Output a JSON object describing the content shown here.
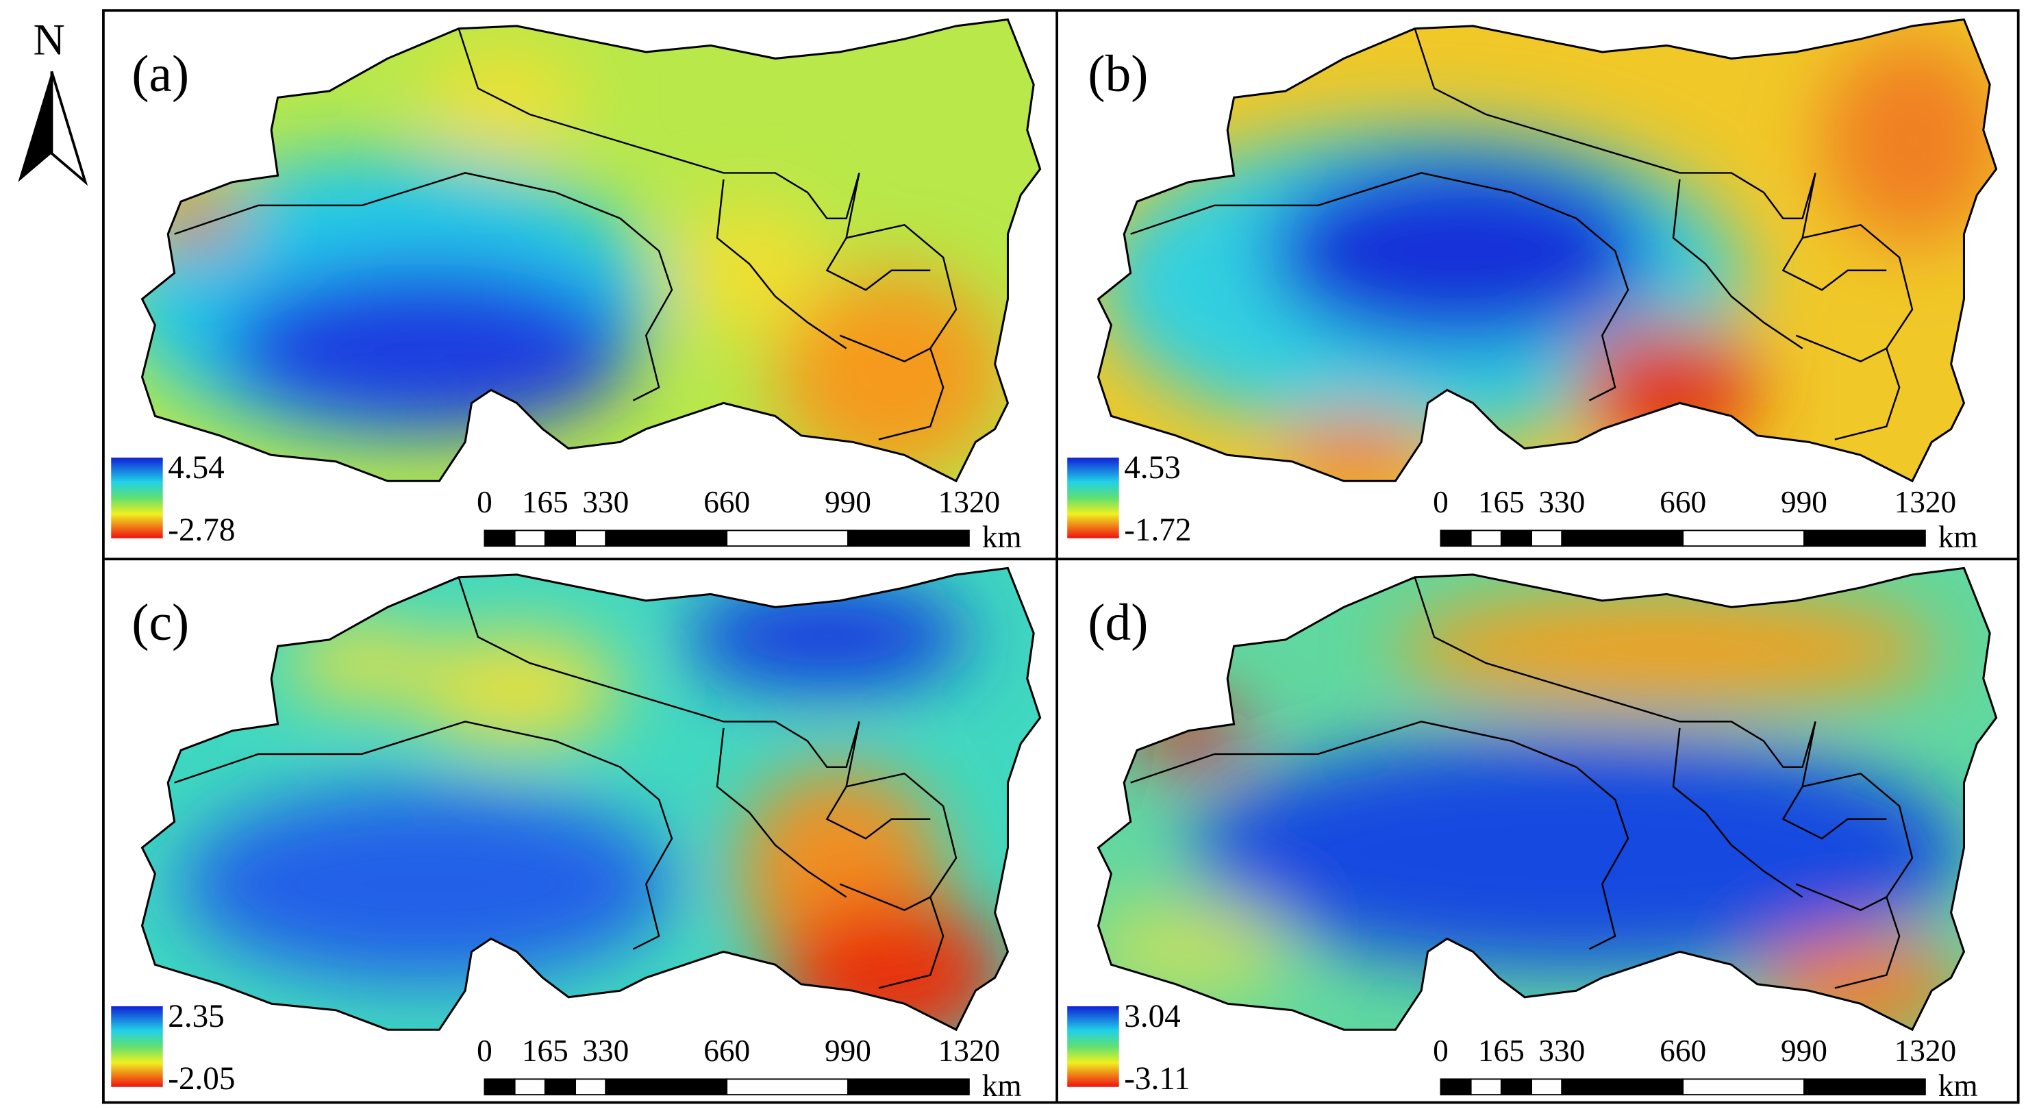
{
  "north": "N",
  "panels": [
    {
      "label": "(a)",
      "legend": {
        "max": 4.54,
        "min": -2.78
      }
    },
    {
      "label": "(b)",
      "legend": {
        "max": 4.53,
        "min": -1.72
      }
    },
    {
      "label": "(c)",
      "legend": {
        "max": 2.35,
        "min": -2.05
      }
    },
    {
      "label": "(d)",
      "legend": {
        "max": 3.04,
        "min": -3.11
      }
    }
  ],
  "scale_bar": {
    "ticks": [
      0,
      165,
      330,
      660,
      990,
      1320
    ],
    "unit": "km"
  }
}
